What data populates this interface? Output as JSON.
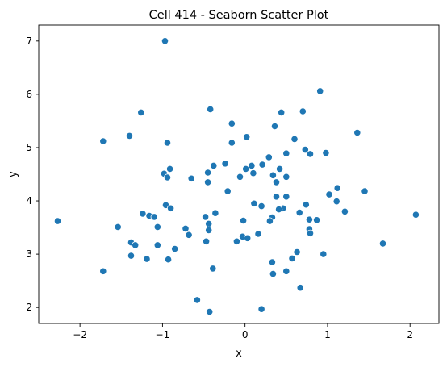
{
  "chart_data": {
    "type": "scatter",
    "title": "Cell 414 - Seaborn Scatter Plot",
    "xlabel": "x",
    "ylabel": "y",
    "xlim": [
      -2.5,
      2.35
    ],
    "ylim": [
      1.7,
      7.3
    ],
    "xticks": [
      -2,
      -1,
      0,
      1,
      2
    ],
    "xtick_labels": [
      "−2",
      "−1",
      "0",
      "1",
      "2"
    ],
    "yticks": [
      2,
      3,
      4,
      5,
      6,
      7
    ],
    "ytick_labels": [
      "2",
      "3",
      "4",
      "5",
      "6",
      "7"
    ],
    "grid": false,
    "legend": "none",
    "color": "#1f77b4",
    "points": [
      [
        -0.97,
        7.0
      ],
      [
        0.91,
        6.06
      ],
      [
        -1.26,
        5.66
      ],
      [
        -0.42,
        5.72
      ],
      [
        0.44,
        5.66
      ],
      [
        0.7,
        5.68
      ],
      [
        -0.16,
        5.45
      ],
      [
        0.36,
        5.4
      ],
      [
        1.36,
        5.28
      ],
      [
        -1.4,
        5.22
      ],
      [
        0.02,
        5.2
      ],
      [
        0.6,
        5.16
      ],
      [
        -1.72,
        5.12
      ],
      [
        -0.94,
        5.09
      ],
      [
        -0.16,
        5.09
      ],
      [
        0.73,
        4.96
      ],
      [
        0.98,
        4.9
      ],
      [
        0.5,
        4.89
      ],
      [
        0.79,
        4.88
      ],
      [
        0.29,
        4.82
      ],
      [
        -0.24,
        4.7
      ],
      [
        0.21,
        4.68
      ],
      [
        -0.38,
        4.66
      ],
      [
        0.08,
        4.66
      ],
      [
        0.01,
        4.6
      ],
      [
        0.42,
        4.6
      ],
      [
        -0.91,
        4.6
      ],
      [
        -0.45,
        4.53
      ],
      [
        0.1,
        4.52
      ],
      [
        -0.98,
        4.51
      ],
      [
        0.34,
        4.48
      ],
      [
        -0.06,
        4.45
      ],
      [
        0.5,
        4.45
      ],
      [
        -0.94,
        4.44
      ],
      [
        -0.65,
        4.42
      ],
      [
        -0.45,
        4.35
      ],
      [
        0.38,
        4.35
      ],
      [
        1.12,
        4.24
      ],
      [
        -0.21,
        4.18
      ],
      [
        1.45,
        4.18
      ],
      [
        1.02,
        4.12
      ],
      [
        0.38,
        4.08
      ],
      [
        0.5,
        4.08
      ],
      [
        1.11,
        3.99
      ],
      [
        0.11,
        3.95
      ],
      [
        0.74,
        3.93
      ],
      [
        -0.96,
        3.92
      ],
      [
        0.2,
        3.9
      ],
      [
        -0.9,
        3.86
      ],
      [
        0.46,
        3.86
      ],
      [
        0.41,
        3.84
      ],
      [
        1.21,
        3.8
      ],
      [
        0.66,
        3.78
      ],
      [
        -1.24,
        3.76
      ],
      [
        -0.36,
        3.77
      ],
      [
        -1.16,
        3.72
      ],
      [
        2.07,
        3.74
      ],
      [
        -0.48,
        3.7
      ],
      [
        -1.1,
        3.7
      ],
      [
        0.33,
        3.69
      ],
      [
        0.78,
        3.65
      ],
      [
        0.87,
        3.64
      ],
      [
        -0.02,
        3.63
      ],
      [
        0.3,
        3.62
      ],
      [
        -2.27,
        3.62
      ],
      [
        -0.44,
        3.57
      ],
      [
        -1.54,
        3.51
      ],
      [
        -1.06,
        3.51
      ],
      [
        -0.72,
        3.48
      ],
      [
        0.78,
        3.47
      ],
      [
        -0.44,
        3.45
      ],
      [
        0.79,
        3.39
      ],
      [
        0.16,
        3.38
      ],
      [
        -0.68,
        3.36
      ],
      [
        -0.03,
        3.33
      ],
      [
        0.03,
        3.3
      ],
      [
        -0.1,
        3.24
      ],
      [
        -0.47,
        3.24
      ],
      [
        1.67,
        3.2
      ],
      [
        -1.38,
        3.22
      ],
      [
        -1.33,
        3.17
      ],
      [
        -1.06,
        3.17
      ],
      [
        -0.85,
        3.1
      ],
      [
        0.63,
        3.04
      ],
      [
        0.95,
        3.0
      ],
      [
        -1.38,
        2.97
      ],
      [
        0.57,
        2.92
      ],
      [
        -1.19,
        2.91
      ],
      [
        -0.93,
        2.9
      ],
      [
        0.33,
        2.85
      ],
      [
        -0.39,
        2.73
      ],
      [
        -1.72,
        2.68
      ],
      [
        0.5,
        2.68
      ],
      [
        0.34,
        2.63
      ],
      [
        0.67,
        2.37
      ],
      [
        -0.58,
        2.14
      ],
      [
        0.2,
        1.97
      ],
      [
        -0.43,
        1.92
      ]
    ]
  }
}
